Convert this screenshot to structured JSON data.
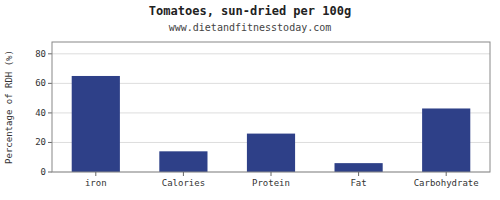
{
  "chart_data": {
    "type": "bar",
    "title": "Tomatoes, sun-dried per 100g",
    "subtitle": "www.dietandfitnesstoday.com",
    "categories": [
      "iron",
      "Calories",
      "Protein",
      "Fat",
      "Carbohydrate"
    ],
    "values": [
      65,
      14,
      26,
      6,
      43
    ],
    "color": "#2e4088",
    "ylabel": "Percentage of RDH (%)",
    "ylim": [
      0,
      88
    ],
    "yticks": [
      0,
      20,
      40,
      60,
      80
    ],
    "grid": true
  }
}
